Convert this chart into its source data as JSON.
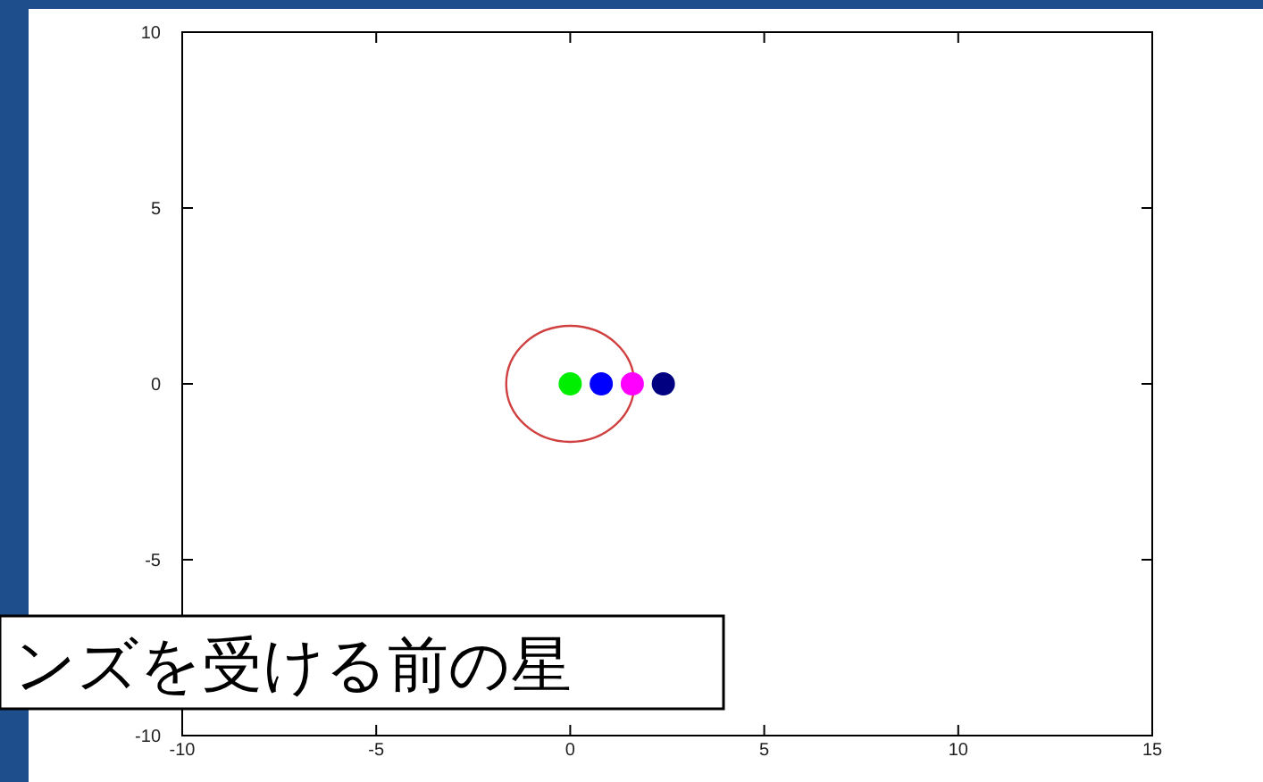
{
  "chart_data": {
    "type": "scatter",
    "xlim": [
      -10,
      15
    ],
    "ylim": [
      -10,
      10
    ],
    "xticks": [
      -10,
      -5,
      0,
      5,
      10,
      15
    ],
    "yticks": [
      -10,
      -5,
      0,
      5,
      10
    ],
    "grid": false,
    "marker": "circle",
    "annotations": [
      "ンズを受ける前の星"
    ],
    "series": [
      {
        "x": [
          0,
          0.8,
          1.6,
          2.4
        ],
        "values": [
          0,
          0,
          0,
          0
        ],
        "colors": [
          "#00ee00",
          "#0000ff",
          "#ff00ff",
          "#000080"
        ]
      }
    ]
  }
}
